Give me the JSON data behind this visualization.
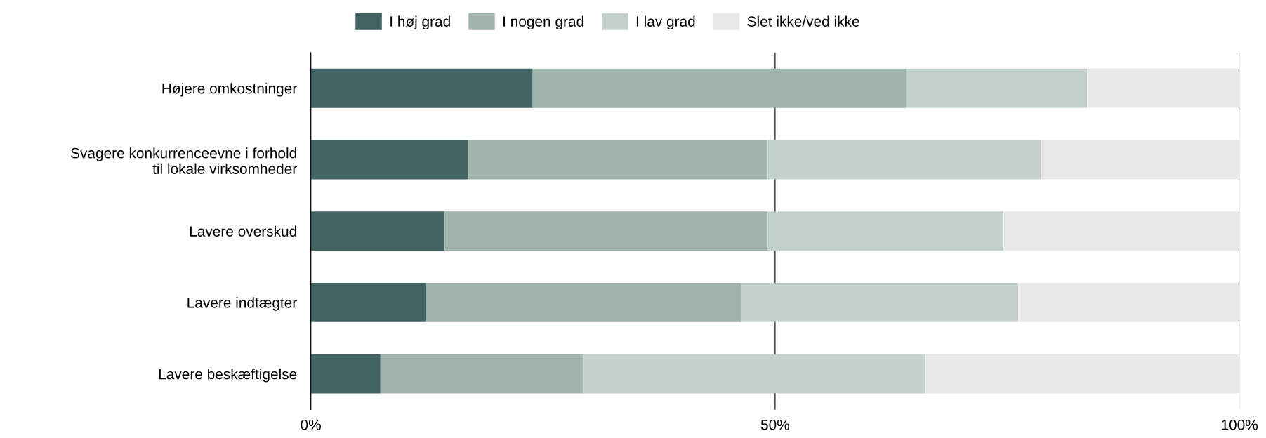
{
  "chart_data": {
    "type": "bar",
    "orientation": "horizontal",
    "stacked": true,
    "categories": [
      "Højere omkostninger",
      "Svagere konkurrenceevne i forhold\ntil lokale virksomheder",
      "Lavere overskud",
      "Lavere indtægter",
      "Lavere beskæftigelse"
    ],
    "series": [
      {
        "name": "I høj grad",
        "color": "#426361",
        "values": [
          23.9,
          17.0,
          14.4,
          12.4,
          7.5
        ]
      },
      {
        "name": "I nogen grad",
        "color": "#a1b5ad",
        "values": [
          40.3,
          32.2,
          34.8,
          33.9,
          21.9
        ]
      },
      {
        "name": "I lav grad",
        "color": "#c4d0cc",
        "values": [
          19.4,
          29.4,
          25.4,
          29.9,
          36.8
        ]
      },
      {
        "name": "Slet ikke/ved ikke",
        "color": "#e8e8e8",
        "values": [
          16.4,
          21.4,
          25.4,
          23.8,
          33.8
        ]
      }
    ],
    "xlim": [
      0,
      100
    ],
    "xticks": [
      {
        "value": 0,
        "label": "0%"
      },
      {
        "value": 50,
        "label": "50%"
      },
      {
        "value": 100,
        "label": "100%"
      }
    ],
    "grid": "x",
    "legend": "top"
  }
}
